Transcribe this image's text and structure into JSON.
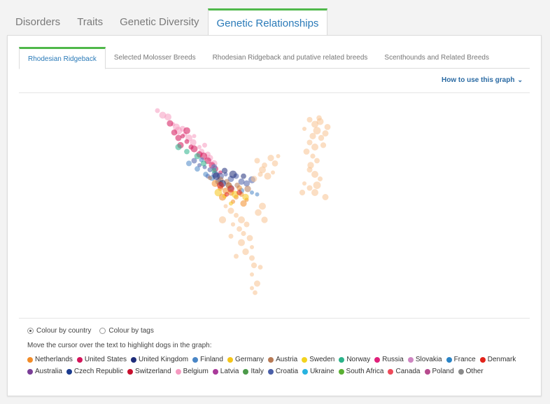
{
  "top_tabs": [
    "Disorders",
    "Traits",
    "Genetic Diversity",
    "Genetic Relationships"
  ],
  "sub_tabs": [
    "Rhodesian Ridgeback",
    "Selected Molosser Breeds",
    "Rhodesian Ridgeback and putative related breeds",
    "Scenthounds and Related Breeds"
  ],
  "howto": "How to use this graph",
  "radios": {
    "country": "Colour by country",
    "tags": "Colour by tags"
  },
  "hint": "Move the cursor over the text to highlight dogs in the graph:",
  "legend": [
    {
      "label": "Netherlands",
      "color": "#f28c28"
    },
    {
      "label": "United States",
      "color": "#d4145a"
    },
    {
      "label": "United Kingdom",
      "color": "#1f2d7a"
    },
    {
      "label": "Finland",
      "color": "#4a86c6"
    },
    {
      "label": "Germany",
      "color": "#f5c518"
    },
    {
      "label": "Austria",
      "color": "#b77a55"
    },
    {
      "label": "Sweden",
      "color": "#f2d31f"
    },
    {
      "label": "Norway",
      "color": "#2bb38a"
    },
    {
      "label": "Russia",
      "color": "#e0207a"
    },
    {
      "label": "Slovakia",
      "color": "#cf86c2"
    },
    {
      "label": "France",
      "color": "#2a84c6"
    },
    {
      "label": "Denmark",
      "color": "#e2231a"
    },
    {
      "label": "Australia",
      "color": "#7a3e97"
    },
    {
      "label": "Czech Republic",
      "color": "#1b3b8f"
    },
    {
      "label": "Switzerland",
      "color": "#c8102e"
    },
    {
      "label": "Belgium",
      "color": "#f59ac0"
    },
    {
      "label": "Latvia",
      "color": "#a93a9a"
    },
    {
      "label": "Italy",
      "color": "#4c9a4a"
    },
    {
      "label": "Croatia",
      "color": "#4a5fa8"
    },
    {
      "label": "Ukraine",
      "color": "#27b3e0"
    },
    {
      "label": "South Africa",
      "color": "#5ab033"
    },
    {
      "label": "Canada",
      "color": "#ee4a5a"
    },
    {
      "label": "Poland",
      "color": "#b64b8e"
    },
    {
      "label": "Other",
      "color": "#8a8a8a"
    }
  ],
  "chart_data": {
    "type": "scatter",
    "title": "",
    "xlabel": "",
    "ylabel": "",
    "grid": false,
    "legend_placement": "below",
    "note": "dimensionless genetic-relationship ordination plot; no axes printed",
    "series": [
      {
        "color": "#f59ac0",
        "points": [
          [
            -0.9,
            1.0
          ],
          [
            -0.85,
            0.95
          ],
          [
            -0.8,
            0.93
          ],
          [
            -0.75,
            0.85
          ],
          [
            -0.72,
            0.82
          ],
          [
            -0.7,
            0.78
          ],
          [
            -0.66,
            0.8
          ],
          [
            -0.64,
            0.74
          ],
          [
            -0.6,
            0.7
          ],
          [
            -0.56,
            0.65
          ],
          [
            -0.55,
            0.72
          ],
          [
            -0.5,
            0.6
          ],
          [
            -0.48,
            0.55
          ],
          [
            -0.45,
            0.62
          ],
          [
            -0.42,
            0.52
          ],
          [
            -0.4,
            0.48
          ],
          [
            -0.36,
            0.42
          ]
        ]
      },
      {
        "color": "#d4145a",
        "points": [
          [
            -0.78,
            0.86
          ],
          [
            -0.74,
            0.76
          ],
          [
            -0.7,
            0.7
          ],
          [
            -0.66,
            0.72
          ],
          [
            -0.62,
            0.66
          ],
          [
            -0.58,
            0.6
          ],
          [
            -0.55,
            0.58
          ],
          [
            -0.5,
            0.52
          ],
          [
            -0.46,
            0.5
          ],
          [
            -0.42,
            0.45
          ],
          [
            -0.38,
            0.4
          ],
          [
            -0.35,
            0.36
          ],
          [
            -0.3,
            0.32
          ],
          [
            -0.62,
            0.78
          ],
          [
            -0.68,
            0.62
          ]
        ]
      },
      {
        "color": "#4a5fa8",
        "points": [
          [
            -0.55,
            0.45
          ],
          [
            -0.5,
            0.4
          ],
          [
            -0.45,
            0.38
          ],
          [
            -0.4,
            0.35
          ],
          [
            -0.35,
            0.3
          ],
          [
            -0.3,
            0.28
          ],
          [
            -0.25,
            0.3
          ],
          [
            -0.2,
            0.25
          ],
          [
            -0.15,
            0.28
          ],
          [
            -0.1,
            0.22
          ],
          [
            -0.05,
            0.2
          ],
          [
            0.0,
            0.24
          ],
          [
            -0.42,
            0.28
          ],
          [
            -0.32,
            0.22
          ],
          [
            -0.22,
            0.18
          ]
        ]
      },
      {
        "color": "#4a86c6",
        "points": [
          [
            -0.6,
            0.42
          ],
          [
            -0.52,
            0.36
          ],
          [
            -0.44,
            0.3
          ],
          [
            -0.38,
            0.26
          ],
          [
            -0.3,
            0.2
          ],
          [
            -0.2,
            0.15
          ],
          [
            -0.1,
            0.12
          ],
          [
            0.0,
            0.1
          ],
          [
            0.05,
            0.08
          ],
          [
            -0.48,
            0.46
          ],
          [
            -0.36,
            0.38
          ]
        ]
      },
      {
        "color": "#2bb38a",
        "points": [
          [
            -0.7,
            0.6
          ],
          [
            -0.62,
            0.55
          ],
          [
            -0.52,
            0.5
          ],
          [
            -0.46,
            0.42
          ],
          [
            -0.36,
            0.34
          ]
        ]
      },
      {
        "color": "#f28c28",
        "points": [
          [
            -0.35,
            0.2
          ],
          [
            -0.3,
            0.15
          ],
          [
            -0.25,
            0.12
          ],
          [
            -0.2,
            0.1
          ],
          [
            -0.15,
            0.05
          ],
          [
            -0.1,
            0.08
          ],
          [
            -0.05,
            0.02
          ],
          [
            -0.28,
            0.05
          ],
          [
            -0.18,
            0.0
          ],
          [
            -0.08,
            -0.02
          ],
          [
            -0.22,
            0.18
          ],
          [
            -0.12,
            0.15
          ]
        ]
      },
      {
        "color": "#f5c518",
        "points": [
          [
            -0.32,
            0.1
          ],
          [
            -0.26,
            0.06
          ],
          [
            -0.16,
            0.08
          ],
          [
            -0.06,
            0.05
          ],
          [
            -0.2,
            -0.02
          ]
        ]
      },
      {
        "color": "#b77a55",
        "points": [
          [
            -0.4,
            0.26
          ],
          [
            -0.3,
            0.24
          ],
          [
            -0.24,
            0.22
          ],
          [
            -0.14,
            0.18
          ],
          [
            -0.04,
            0.14
          ]
        ]
      },
      {
        "color": "#1f2d7a",
        "points": [
          [
            -0.34,
            0.28
          ],
          [
            -0.26,
            0.34
          ],
          [
            -0.18,
            0.3
          ],
          [
            -0.08,
            0.28
          ],
          [
            -0.28,
            0.2
          ]
        ]
      },
      {
        "color": "#e2231a",
        "points": [
          [
            -0.3,
            0.18
          ],
          [
            -0.2,
            0.14
          ],
          [
            -0.12,
            0.1
          ],
          [
            -0.24,
            0.08
          ]
        ]
      },
      {
        "color": "#f7c391",
        "points": [
          [
            0.55,
            0.9
          ],
          [
            0.6,
            0.85
          ],
          [
            0.65,
            0.88
          ],
          [
            0.62,
            0.78
          ],
          [
            0.58,
            0.72
          ],
          [
            0.66,
            0.7
          ],
          [
            0.7,
            0.75
          ],
          [
            0.55,
            0.65
          ],
          [
            0.6,
            0.6
          ],
          [
            0.68,
            0.62
          ],
          [
            0.52,
            0.55
          ],
          [
            0.58,
            0.5
          ],
          [
            0.62,
            0.45
          ],
          [
            0.55,
            0.35
          ],
          [
            0.6,
            0.3
          ],
          [
            0.65,
            0.25
          ],
          [
            0.5,
            0.2
          ],
          [
            0.55,
            0.15
          ],
          [
            0.6,
            0.1
          ],
          [
            0.7,
            0.05
          ],
          [
            0.48,
            0.1
          ],
          [
            0.62,
            0.18
          ],
          [
            0.72,
            0.82
          ],
          [
            0.5,
            0.8
          ],
          [
            0.64,
            0.92
          ],
          [
            0.56,
            0.4
          ],
          [
            0.05,
            0.45
          ],
          [
            0.12,
            0.4
          ],
          [
            0.18,
            0.48
          ],
          [
            0.22,
            0.42
          ],
          [
            0.1,
            0.35
          ],
          [
            0.08,
            0.3
          ],
          [
            0.15,
            0.28
          ],
          [
            0.02,
            0.25
          ],
          [
            0.2,
            0.32
          ],
          [
            0.25,
            0.5
          ],
          [
            -0.25,
            -0.05
          ],
          [
            -0.2,
            -0.1
          ],
          [
            -0.15,
            -0.15
          ],
          [
            -0.1,
            -0.2
          ],
          [
            -0.18,
            -0.25
          ],
          [
            -0.12,
            -0.3
          ],
          [
            -0.05,
            -0.25
          ],
          [
            -0.08,
            -0.35
          ],
          [
            -0.02,
            -0.4
          ],
          [
            -0.1,
            -0.45
          ],
          [
            0.0,
            -0.5
          ],
          [
            -0.06,
            -0.55
          ],
          [
            -0.15,
            -0.6
          ],
          [
            0.02,
            -0.7
          ],
          [
            0.0,
            -0.8
          ],
          [
            0.05,
            -0.9
          ],
          [
            0.03,
            -1.0
          ],
          [
            0.0,
            -0.95
          ],
          [
            0.08,
            -0.72
          ],
          [
            -0.2,
            -0.38
          ],
          [
            -0.28,
            -0.2
          ],
          [
            0.1,
            -0.05
          ],
          [
            0.06,
            -0.12
          ],
          [
            0.12,
            -0.2
          ],
          [
            0.0,
            -0.62
          ]
        ]
      }
    ]
  }
}
